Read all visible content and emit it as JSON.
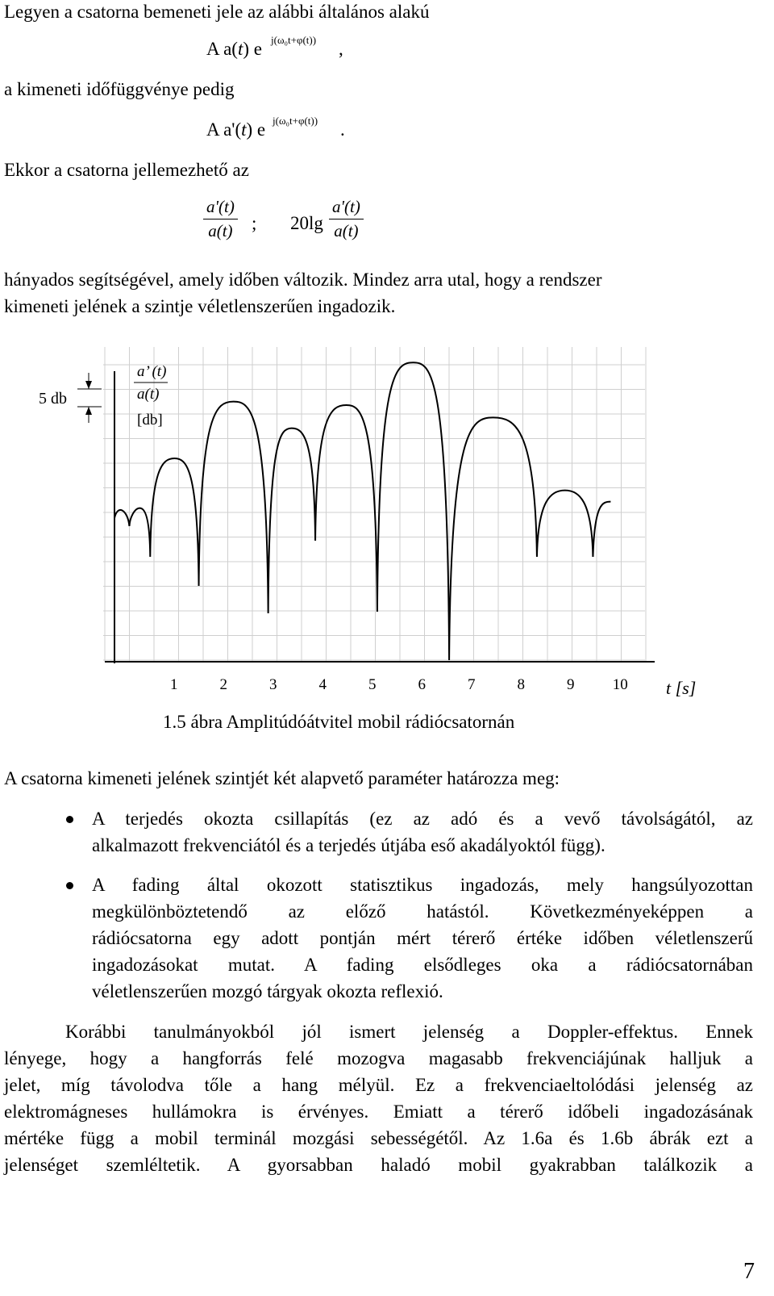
{
  "intro": {
    "line1": "Legyen a csatorna bemeneti jele az alábbi általános alakú",
    "formula1": {
      "main_a": "A a(",
      "main_t": "t",
      "main_b": ") e",
      "exponent": "j(ω₀t+φ(t))",
      "trail": ","
    },
    "line2": "a kimeneti időfüggvénye pedig",
    "formula2": {
      "main_a": "A a'(",
      "main_t": "t",
      "main_b": ") e",
      "exponent": "j(ω₀t+φ(t))",
      "trail": "."
    },
    "line3": "Ekkor a csatorna jellemezhető az",
    "ratio1": {
      "num": "a'(t)",
      "den": "a(t)",
      "sep": ";"
    },
    "ratio2": {
      "prefix": "20lg",
      "num": "a'(t)",
      "den": "a(t)"
    },
    "line4": "hányados segítségével, amely időben változik. Mindez arra utal, hogy a rendszer",
    "line5": "kimeneti jelének a szintje véletlenszerűen ingadozik."
  },
  "figure": {
    "scale_label": "5 db",
    "ylabel_num": "a’ (t)",
    "ylabel_den": "a(t)",
    "ylabel_unit": "[db]",
    "xlabel": "t [s]",
    "caption": "1.5 ábra Amplitúdóátvitel mobil rádiócsatornán",
    "chart_data": {
      "type": "line",
      "title": "",
      "xlabel": "t [s]",
      "ylabel": "a’ (t) / a(t) [db]",
      "x_ticks": [
        1,
        2,
        3,
        4,
        5,
        6,
        7,
        8,
        9,
        10
      ],
      "xlim": [
        -0.2,
        10.5
      ],
      "grid": true,
      "fade_dips_x": [
        0.1,
        0.52,
        1.5,
        2.9,
        3.85,
        5.1,
        6.55,
        8.32,
        9.45
      ],
      "lobe_peak_heights_db": [
        0,
        -0.8,
        2.0,
        5.2,
        3.7,
        5.0,
        7.4,
        4.3,
        0.2
      ]
    }
  },
  "body": {
    "para1": "A csatorna kimeneti jelének szintjét két alapvető paraméter határozza meg:",
    "bullet1_line1": "A terjedés okozta csillapítás (ez az adó és a vevő távolságától, az",
    "bullet1_line2": "alkalmazott frekvenciától és a terjedés útjába eső akadályoktól függ).",
    "bullet2_line1": "A fading által okozott statisztikus ingadozás, mely hangsúlyozottan",
    "bullet2_line2": "megkülönböztetendő az előző hatástól. Következményeképpen a",
    "bullet2_line3": "rádiócsatorna egy adott pontján mért térerő értéke időben véletlenszerű",
    "bullet2_line4": "ingadozásokat mutat. A fading elsődleges oka a rádiócsatornában",
    "bullet2_line5": "véletlenszerűen mozgó tárgyak okozta reflexió.",
    "para2_line1": "Korábbi tanulmányokból jól ismert jelenség a Doppler-effektus. Ennek",
    "para2_line2": "lényege, hogy a hangforrás felé mozogva magasabb frekvenciájúnak halljuk a",
    "para2_line3": "jelet, míg távolodva tőle a hang mélyül. Ez a frekvenciaeltolódási jelenség az",
    "para2_line4": "elektromágneses hullámokra is érvényes. Emiatt a térerő időbeli ingadozásának",
    "para2_line5": "mértéke függ a mobil terminál mozgási sebességétől. Az 1.6a és 1.6b ábrák ezt a",
    "para2_line6": "jelenséget szemléltetik. A gyorsabban haladó mobil gyakrabban találkozik a"
  },
  "page_number": "7"
}
